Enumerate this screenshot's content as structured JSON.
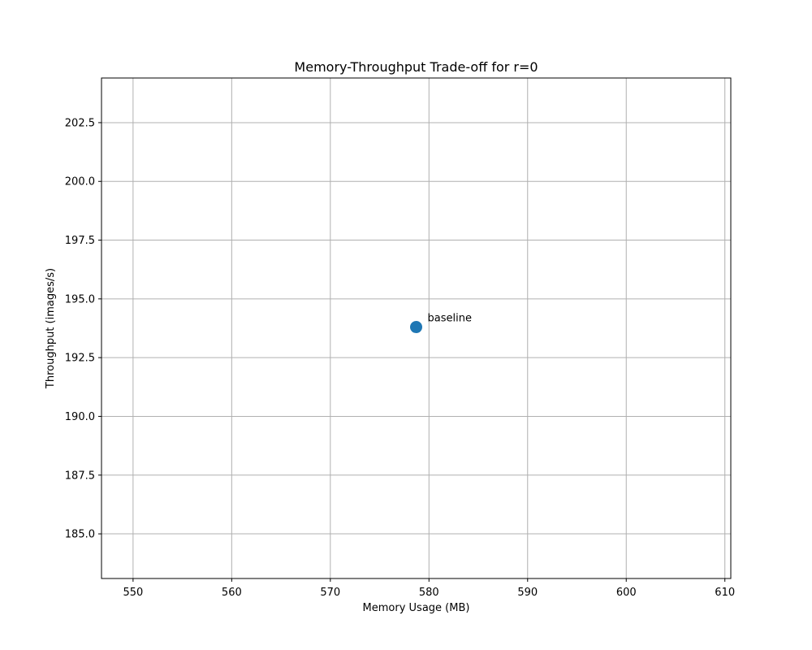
{
  "chart_data": {
    "type": "scatter",
    "title": "Memory-Throughput Trade-off for r=0",
    "xlabel": "Memory Usage (MB)",
    "ylabel": "Throughput (images/s)",
    "xlim": [
      546.8,
      610.6
    ],
    "ylim": [
      183.1,
      204.4
    ],
    "xticks": [
      550,
      560,
      570,
      580,
      590,
      600,
      610
    ],
    "xtick_labels": [
      "550",
      "560",
      "570",
      "580",
      "590",
      "600",
      "610"
    ],
    "yticks": [
      185.0,
      187.5,
      190.0,
      192.5,
      195.0,
      197.5,
      200.0,
      202.5
    ],
    "ytick_labels": [
      "185.0",
      "187.5",
      "190.0",
      "192.5",
      "195.0",
      "197.5",
      "200.0",
      "202.5"
    ],
    "grid": true,
    "legend": "none",
    "points": [
      {
        "x": 578.7,
        "y": 193.8,
        "label": "baseline",
        "color": "#1f77b4"
      }
    ]
  }
}
